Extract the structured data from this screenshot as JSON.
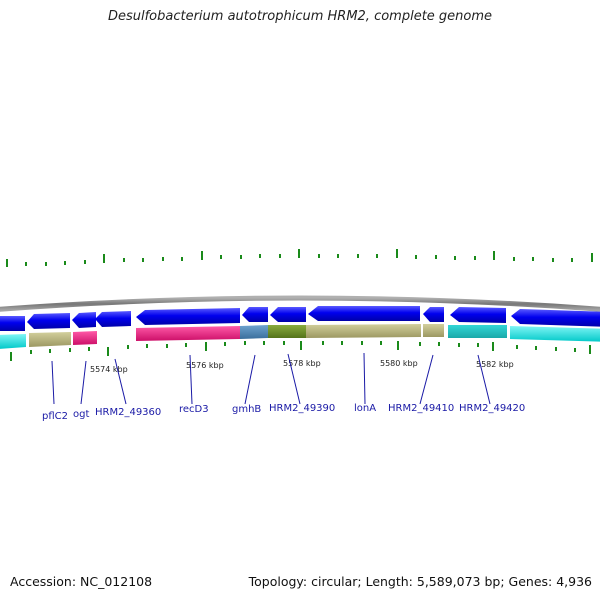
{
  "title": "Desulfobacterium autotrophicum HRM2, complete genome",
  "accession": "Accession: NC_012108",
  "summary": "Topology: circular; Length: 5,589,073 bp; Genes: 4,936",
  "position_labels": [
    "5574 kbp",
    "5576 kbp",
    "5578 kbp",
    "5580 kbp",
    "5582 kbp"
  ],
  "gene_names": [
    "pflC2",
    "ogt",
    "HRM2_49360",
    "recD3",
    "gmhB",
    "HRM2_49390",
    "lonA",
    "HRM2_49410",
    "HRM2_49420"
  ],
  "colors": {
    "backbone": "#8a8a8a",
    "gene_blue": "#0000ee",
    "cog_cyan": "#00e5e5",
    "cog_khaki": "#b8b47a",
    "cog_pink": "#ee1a80",
    "cog_steel": "#4682b4",
    "cog_olive": "#6b8e23",
    "tick_green": "#1a8a1a",
    "label_blue": "#1a1aa6"
  }
}
